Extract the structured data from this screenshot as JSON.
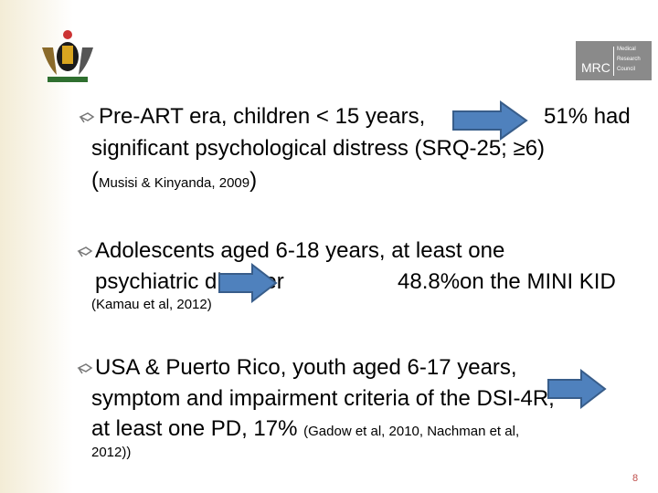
{
  "logo": {
    "abbr": "MRC",
    "lines": [
      "Medical",
      "Research",
      "Council"
    ]
  },
  "bullets": [
    {
      "parts": [
        "Pre-ART era, children < 15 years,",
        "51% had",
        "significant psychological distress (SRQ-25; ≥6)",
        "(",
        "Musisi & Kinyanda, 2009",
        ")"
      ]
    },
    {
      "parts": [
        "Adolescents aged 6-18 years, at least one",
        "psychiatric disorder",
        "48.8%on the MINI KID",
        "(Kamau et al, 2012)"
      ]
    },
    {
      "parts": [
        "USA & Puerto Rico, youth aged 6-17 years,",
        "symptom and impairment criteria of the DSI-4R,",
        "at least one PD, 17%",
        "(Gadow et al, 2010, Nachman et al,",
        "2012))"
      ]
    }
  ],
  "page_number": "8"
}
